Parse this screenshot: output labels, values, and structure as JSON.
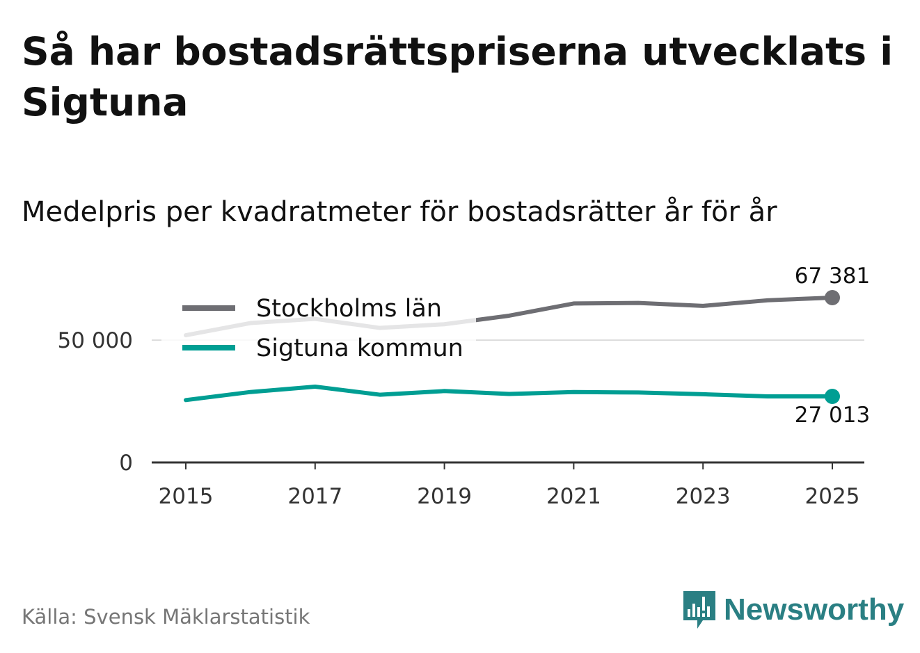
{
  "title": "Så har bostadsrättspriserna utvecklats i Sigtuna",
  "subtitle": "Medelpris per kvadratmeter för bostadsrätter år för år",
  "source": "Källa: Svensk Mäklarstatistik",
  "brand": {
    "name": "Newsworthy",
    "icon": "newsworthy-logo-icon",
    "color": "#2a7f83"
  },
  "chart_data": {
    "type": "line",
    "x": [
      2015,
      2016,
      2017,
      2018,
      2019,
      2020,
      2021,
      2022,
      2023,
      2024,
      2025
    ],
    "ylim": [
      0,
      70000
    ],
    "yticks": [
      0,
      50000
    ],
    "ytick_labels": [
      "0",
      "50 000"
    ],
    "xticks": [
      2015,
      2017,
      2019,
      2021,
      2023,
      2025
    ],
    "xtick_labels": [
      "2015",
      "2017",
      "2019",
      "2021",
      "2023",
      "2025"
    ],
    "grid": true,
    "legend_position": "top-left",
    "series": [
      {
        "name": "Stockholms län",
        "color": "#6e6e73",
        "values": [
          52000,
          57000,
          58700,
          55000,
          56500,
          60000,
          65000,
          65200,
          64000,
          66300,
          67381
        ],
        "end_label": "67 381"
      },
      {
        "name": "Sigtuna kommun",
        "color": "#009e93",
        "values": [
          25500,
          28800,
          31000,
          27700,
          29200,
          28000,
          28800,
          28600,
          27900,
          27000,
          27013
        ],
        "end_label": "27 013"
      }
    ]
  }
}
